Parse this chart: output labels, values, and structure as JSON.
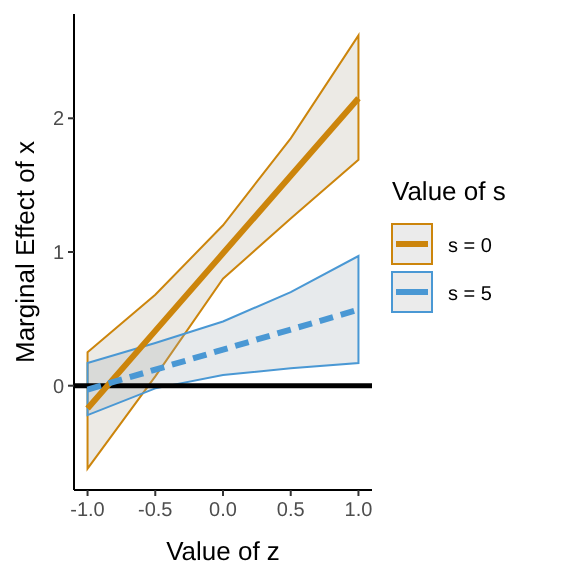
{
  "chart_data": {
    "type": "line",
    "xlabel": "Value of z",
    "ylabel": "Marginal Effect of x",
    "legend_title": "Value of s",
    "legend": "right",
    "grid": false,
    "xlim": [
      -1.1,
      1.1
    ],
    "xticks": [
      {
        "value": -1,
        "label": "-1.0"
      },
      {
        "value": -0.5,
        "label": "-0.5"
      },
      {
        "value": 0,
        "label": "0.0"
      },
      {
        "value": 0.5,
        "label": "0.5"
      },
      {
        "value": 1,
        "label": "1.0"
      }
    ],
    "ylim": [
      -0.78,
      2.78
    ],
    "yticks": [
      0,
      1,
      2
    ],
    "x": [
      -1,
      -0.5,
      0,
      0.5,
      1
    ],
    "series": [
      {
        "name": "s = 0",
        "color": "#cc850c",
        "line_style": "solid",
        "values": [
          -0.17,
          0.41,
          0.99,
          1.57,
          2.15
        ],
        "lower": [
          -0.62,
          0.07,
          0.8,
          1.25,
          1.69
        ],
        "upper": [
          0.25,
          0.68,
          1.2,
          1.85,
          2.62
        ]
      },
      {
        "name": "s = 5",
        "color": "#4a98d4",
        "line_style": "dashed",
        "values": [
          -0.03,
          0.12,
          0.27,
          0.42,
          0.57
        ],
        "lower": [
          -0.22,
          -0.02,
          0.08,
          0.13,
          0.17
        ],
        "upper": [
          0.17,
          0.32,
          0.48,
          0.7,
          0.97
        ]
      }
    ],
    "ref_lines": [
      {
        "axis": "y",
        "value": 0,
        "color": "#000000"
      }
    ]
  }
}
